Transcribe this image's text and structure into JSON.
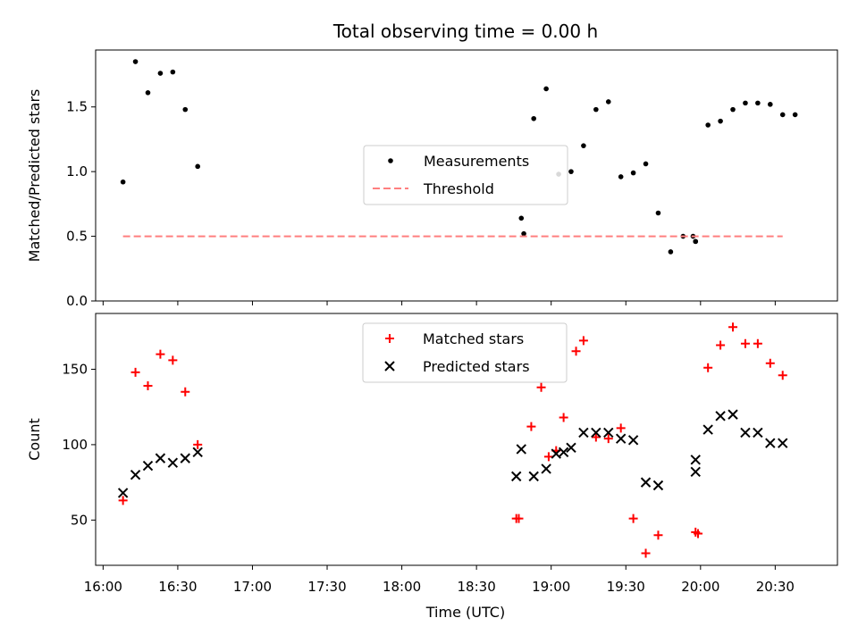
{
  "figure": {
    "title": "Total observing time = 0.00 h",
    "xlabel": "Time (UTC)"
  },
  "chart_data": [
    {
      "type": "scatter",
      "ylabel": "Matched/Predicted stars",
      "xlim": [
        "15:57",
        "20:55"
      ],
      "ylim": [
        0,
        1.94
      ],
      "yticks": [
        "0.0",
        "0.5",
        "1.0",
        "1.5"
      ],
      "legend_position": "center",
      "series": [
        {
          "name": "Measurements",
          "marker": "dot",
          "color": "#000000",
          "x": [
            "16:08",
            "16:13",
            "16:18",
            "16:23",
            "16:28",
            "16:33",
            "16:38",
            "18:48",
            "18:49",
            "18:53",
            "18:58",
            "19:03",
            "19:08",
            "19:13",
            "19:18",
            "19:23",
            "19:28",
            "19:33",
            "19:38",
            "19:43",
            "19:48",
            "19:53",
            "19:58",
            "20:03",
            "20:08",
            "20:13",
            "20:18",
            "20:23",
            "20:28",
            "20:33",
            "20:38",
            "19:57",
            "19:58"
          ],
          "y": [
            0.92,
            1.85,
            1.61,
            1.76,
            1.77,
            1.48,
            1.04,
            0.64,
            0.52,
            1.41,
            1.64,
            0.98,
            1.0,
            1.2,
            1.48,
            1.54,
            0.96,
            0.99,
            1.06,
            0.68,
            0.38,
            0.5,
            0.46,
            1.36,
            1.39,
            1.48,
            1.53,
            1.53,
            1.52,
            1.44,
            1.44,
            0.5,
            0.46
          ]
        },
        {
          "name": "Threshold",
          "marker": "dashed-line",
          "color": "#ff7f7f",
          "x": [
            "16:08",
            "20:33"
          ],
          "y": [
            0.5,
            0.5
          ]
        }
      ]
    },
    {
      "type": "scatter",
      "ylabel": "Count",
      "xlim": [
        "15:57",
        "20:55"
      ],
      "ylim": [
        20,
        187
      ],
      "yticks": [
        "50",
        "100",
        "150"
      ],
      "xticks": [
        "16:00",
        "16:30",
        "17:00",
        "17:30",
        "18:00",
        "18:30",
        "19:00",
        "19:30",
        "20:00",
        "20:30"
      ],
      "legend_position": "upper center",
      "series": [
        {
          "name": "Matched stars",
          "marker": "plus",
          "color": "#ff0000",
          "x": [
            "16:08",
            "16:13",
            "16:18",
            "16:23",
            "16:28",
            "16:33",
            "16:38",
            "18:46",
            "18:47",
            "18:52",
            "18:56",
            "18:59",
            "19:02",
            "19:05",
            "19:10",
            "19:13",
            "19:18",
            "19:23",
            "19:28",
            "19:33",
            "19:38",
            "19:43",
            "19:58",
            "19:59",
            "20:03",
            "20:08",
            "20:13",
            "20:18",
            "20:23",
            "20:28",
            "20:33"
          ],
          "y": [
            63,
            148,
            139,
            160,
            156,
            135,
            100,
            51,
            51,
            112,
            138,
            92,
            96,
            118,
            162,
            169,
            105,
            104,
            111,
            51,
            28,
            40,
            42,
            41,
            151,
            166,
            178,
            167,
            167,
            154,
            146
          ]
        },
        {
          "name": "Predicted stars",
          "marker": "x",
          "color": "#000000",
          "x": [
            "16:08",
            "16:13",
            "16:18",
            "16:23",
            "16:28",
            "16:33",
            "16:38",
            "18:46",
            "18:48",
            "18:53",
            "18:58",
            "19:02",
            "19:05",
            "19:08",
            "19:13",
            "19:18",
            "19:23",
            "19:28",
            "19:33",
            "19:38",
            "19:43",
            "19:58",
            "19:58",
            "20:03",
            "20:08",
            "20:13",
            "20:18",
            "20:23",
            "20:28",
            "20:33"
          ],
          "y": [
            68,
            80,
            86,
            91,
            88,
            91,
            95,
            79,
            97,
            79,
            84,
            94,
            95,
            98,
            108,
            108,
            108,
            104,
            103,
            75,
            73,
            90,
            82,
            110,
            119,
            120,
            108,
            108,
            101,
            101
          ]
        }
      ]
    }
  ]
}
